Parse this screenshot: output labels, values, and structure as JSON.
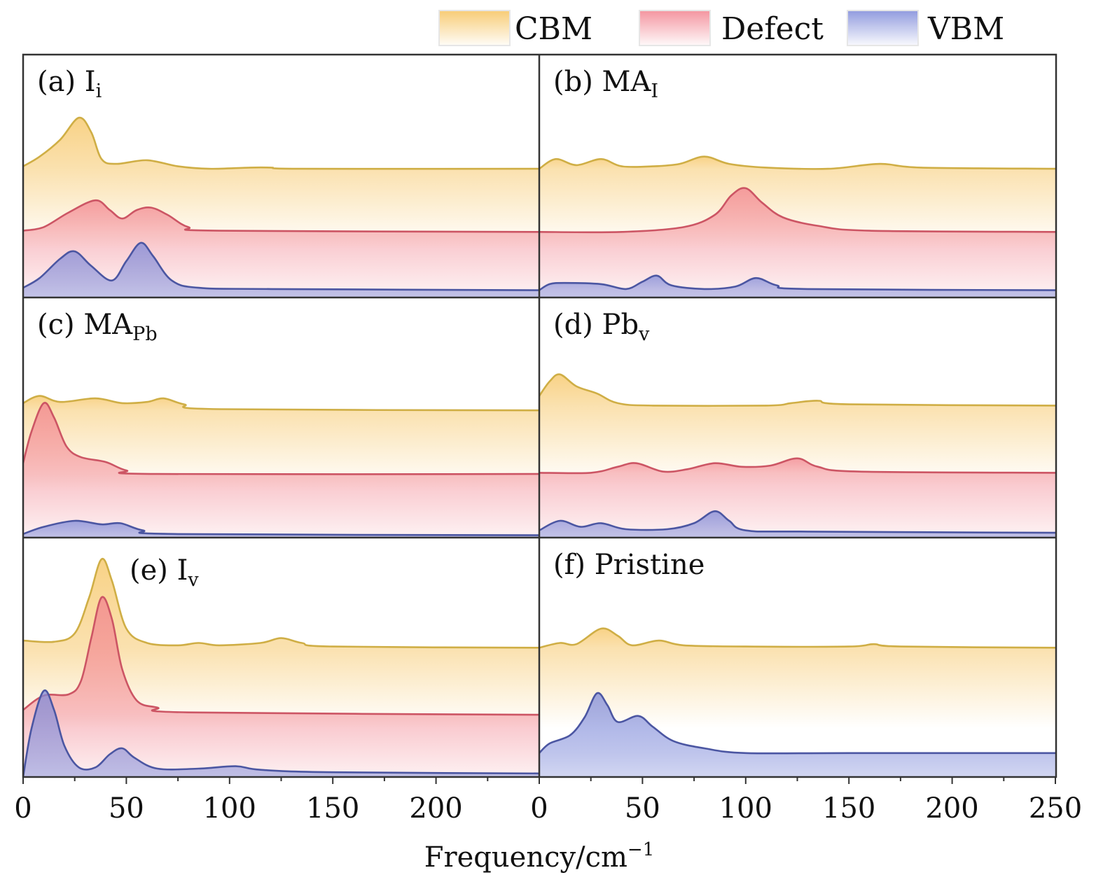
{
  "chart_data": {
    "type": "area",
    "xlabel": "Frequency/cm",
    "xlabel_sup": "−1",
    "xlim": [
      0,
      250
    ],
    "xticks_major": [
      0,
      50,
      100,
      150,
      200,
      250
    ],
    "xtick_minor_step": 25,
    "ylabel": "",
    "grid": false,
    "legend_placement": "top-right, outside",
    "legend": [
      {
        "name": "CBM",
        "line_color": "#cfae45",
        "fill_color": "#f6c35e"
      },
      {
        "name": "Defect",
        "line_color": "#cc5564",
        "fill_color": "#f2838f"
      },
      {
        "name": "VBM",
        "line_color": "#4b56a2",
        "fill_color": "#7e8ad9"
      }
    ],
    "y_units": "arbitrary, stacked (0–100 per panel)",
    "panels": [
      {
        "id": "a",
        "label": "(a) I",
        "sub": "i",
        "col": 0,
        "row": 0,
        "series": [
          {
            "name": "CBM",
            "points": [
              [
                0,
                54
              ],
              [
                8,
                58
              ],
              [
                18,
                65
              ],
              [
                27,
                74
              ],
              [
                33,
                68
              ],
              [
                38,
                57
              ],
              [
                45,
                55
              ],
              [
                60,
                56.5
              ],
              [
                75,
                54
              ],
              [
                90,
                53
              ],
              [
                110,
                53.5
              ],
              [
                120,
                53.5
              ],
              [
                135,
                53
              ],
              [
                250,
                53
              ]
            ]
          },
          {
            "name": "Defect",
            "points": [
              [
                0,
                27.5
              ],
              [
                10,
                29
              ],
              [
                22,
                35
              ],
              [
                35,
                40
              ],
              [
                42,
                36
              ],
              [
                48,
                32.5
              ],
              [
                55,
                36
              ],
              [
                62,
                37
              ],
              [
                70,
                34
              ],
              [
                80,
                29
              ],
              [
                95,
                27.5
              ],
              [
                250,
                27
              ]
            ]
          },
          {
            "name": "VBM",
            "points": [
              [
                0,
                4
              ],
              [
                8,
                8
              ],
              [
                18,
                16
              ],
              [
                25,
                19
              ],
              [
                33,
                13
              ],
              [
                43,
                7
              ],
              [
                50,
                15
              ],
              [
                57,
                22.5
              ],
              [
                63,
                17
              ],
              [
                72,
                7
              ],
              [
                85,
                4
              ],
              [
                120,
                3.5
              ],
              [
                250,
                3
              ]
            ]
          }
        ]
      },
      {
        "id": "b",
        "label": "(b) MA",
        "sub": "I",
        "col": 1,
        "row": 0,
        "series": [
          {
            "name": "CBM",
            "points": [
              [
                0,
                53
              ],
              [
                8,
                57
              ],
              [
                18,
                54.5
              ],
              [
                30,
                57
              ],
              [
                40,
                54
              ],
              [
                55,
                54
              ],
              [
                68,
                55
              ],
              [
                80,
                58
              ],
              [
                92,
                55
              ],
              [
                110,
                53.5
              ],
              [
                140,
                53
              ],
              [
                165,
                55
              ],
              [
                185,
                53.5
              ],
              [
                250,
                53
              ]
            ]
          },
          {
            "name": "Defect",
            "points": [
              [
                0,
                27
              ],
              [
                40,
                27
              ],
              [
                70,
                29
              ],
              [
                85,
                34
              ],
              [
                93,
                42
              ],
              [
                100,
                45
              ],
              [
                108,
                39
              ],
              [
                118,
                33
              ],
              [
                135,
                29.5
              ],
              [
                160,
                27.5
              ],
              [
                250,
                27
              ]
            ]
          },
          {
            "name": "VBM",
            "points": [
              [
                0,
                3
              ],
              [
                5,
                5.5
              ],
              [
                12,
                6
              ],
              [
                30,
                5.5
              ],
              [
                42,
                3.5
              ],
              [
                50,
                6.5
              ],
              [
                57,
                9
              ],
              [
                64,
                5
              ],
              [
                80,
                3.5
              ],
              [
                95,
                4.5
              ],
              [
                105,
                8
              ],
              [
                115,
                5
              ],
              [
                130,
                3.5
              ],
              [
                250,
                3
              ]
            ]
          }
        ]
      },
      {
        "id": "c",
        "label": "(c) MA",
        "sub": "Pb",
        "col": 0,
        "row": 1,
        "series": [
          {
            "name": "CBM",
            "points": [
              [
                0,
                56
              ],
              [
                8,
                59
              ],
              [
                18,
                56.5
              ],
              [
                35,
                58
              ],
              [
                48,
                56
              ],
              [
                60,
                56.5
              ],
              [
                68,
                58
              ],
              [
                78,
                55.5
              ],
              [
                95,
                53.5
              ],
              [
                250,
                53
              ]
            ]
          },
          {
            "name": "Defect",
            "points": [
              [
                0,
                31
              ],
              [
                4,
                44
              ],
              [
                10,
                56
              ],
              [
                15,
                50
              ],
              [
                21,
                38
              ],
              [
                28,
                33.5
              ],
              [
                40,
                31.5
              ],
              [
                50,
                28
              ],
              [
                65,
                26.5
              ],
              [
                250,
                26.5
              ]
            ]
          },
          {
            "name": "VBM",
            "points": [
              [
                0,
                1.5
              ],
              [
                10,
                4.5
              ],
              [
                25,
                7
              ],
              [
                38,
                5.5
              ],
              [
                47,
                6
              ],
              [
                58,
                3
              ],
              [
                75,
                1.5
              ],
              [
                250,
                1
              ]
            ]
          }
        ]
      },
      {
        "id": "d",
        "label": "(d) Pb",
        "sub": "v",
        "col": 1,
        "row": 1,
        "series": [
          {
            "name": "CBM",
            "points": [
              [
                0,
                59
              ],
              [
                5,
                65
              ],
              [
                10,
                68
              ],
              [
                18,
                63
              ],
              [
                28,
                60
              ],
              [
                38,
                56
              ],
              [
                55,
                55
              ],
              [
                110,
                55
              ],
              [
                122,
                56
              ],
              [
                135,
                57
              ],
              [
                150,
                55.5
              ],
              [
                250,
                55
              ]
            ]
          },
          {
            "name": "Defect",
            "points": [
              [
                0,
                27
              ],
              [
                25,
                27
              ],
              [
                38,
                29.5
              ],
              [
                47,
                31
              ],
              [
                60,
                27.5
              ],
              [
                72,
                28.5
              ],
              [
                85,
                31
              ],
              [
                98,
                29.5
              ],
              [
                112,
                30
              ],
              [
                125,
                33
              ],
              [
                135,
                29.5
              ],
              [
                155,
                27.5
              ],
              [
                250,
                27
              ]
            ]
          },
          {
            "name": "VBM",
            "points": [
              [
                0,
                3
              ],
              [
                10,
                7
              ],
              [
                20,
                4.5
              ],
              [
                30,
                6
              ],
              [
                42,
                3.5
              ],
              [
                62,
                3.5
              ],
              [
                75,
                6
              ],
              [
                85,
                11
              ],
              [
                92,
                7
              ],
              [
                100,
                3
              ],
              [
                130,
                2.5
              ],
              [
                250,
                2
              ]
            ]
          }
        ]
      },
      {
        "id": "e",
        "label": "(e) I",
        "sub": "v",
        "col": 0,
        "row": 2,
        "series": [
          {
            "name": "CBM",
            "points": [
              [
                0,
                57
              ],
              [
                15,
                56.5
              ],
              [
                25,
                60
              ],
              [
                32,
                75
              ],
              [
                38,
                91
              ],
              [
                43,
                82
              ],
              [
                50,
                62
              ],
              [
                60,
                56
              ],
              [
                75,
                55
              ],
              [
                85,
                56
              ],
              [
                95,
                55
              ],
              [
                115,
                56
              ],
              [
                125,
                58
              ],
              [
                135,
                56
              ],
              [
                150,
                54.5
              ],
              [
                250,
                54
              ]
            ]
          },
          {
            "name": "Defect",
            "points": [
              [
                0,
                28
              ],
              [
                10,
                34
              ],
              [
                22,
                34.5
              ],
              [
                28,
                40
              ],
              [
                33,
                58
              ],
              [
                38,
                75
              ],
              [
                43,
                66
              ],
              [
                48,
                45
              ],
              [
                55,
                32
              ],
              [
                65,
                29
              ],
              [
                80,
                27
              ],
              [
                250,
                26
              ]
            ]
          },
          {
            "name": "VBM",
            "points": [
              [
                0,
                0
              ],
              [
                4,
                20
              ],
              [
                10,
                36
              ],
              [
                15,
                28
              ],
              [
                20,
                13
              ],
              [
                27,
                4
              ],
              [
                35,
                4
              ],
              [
                42,
                9.5
              ],
              [
                48,
                12
              ],
              [
                54,
                8
              ],
              [
                65,
                3.5
              ],
              [
                85,
                3.5
              ],
              [
                103,
                4.5
              ],
              [
                115,
                3
              ],
              [
                150,
                2
              ],
              [
                250,
                1.5
              ]
            ]
          }
        ]
      },
      {
        "id": "f",
        "label": "(f) Pristine",
        "sub": "",
        "col": 1,
        "row": 2,
        "series": [
          {
            "name": "CBM",
            "points": [
              [
                0,
                54
              ],
              [
                10,
                56
              ],
              [
                18,
                55.5
              ],
              [
                30,
                62
              ],
              [
                38,
                59
              ],
              [
                45,
                55
              ],
              [
                58,
                57
              ],
              [
                70,
                55
              ],
              [
                100,
                54.5
              ],
              [
                150,
                54.5
              ],
              [
                162,
                55.5
              ],
              [
                175,
                54.5
              ],
              [
                250,
                54
              ]
            ]
          },
          {
            "name": "VBM",
            "points": [
              [
                0,
                10
              ],
              [
                5,
                14
              ],
              [
                15,
                17.5
              ],
              [
                22,
                25
              ],
              [
                28,
                35
              ],
              [
                33,
                30
              ],
              [
                38,
                23
              ],
              [
                48,
                25.5
              ],
              [
                55,
                21
              ],
              [
                65,
                15
              ],
              [
                80,
                12
              ],
              [
                100,
                10
              ],
              [
                150,
                10
              ],
              [
                250,
                10
              ]
            ]
          }
        ]
      }
    ]
  }
}
